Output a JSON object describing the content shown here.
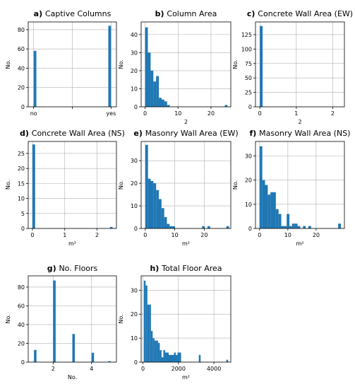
{
  "chart_data": [
    {
      "type": "bar",
      "letter": "a)",
      "title": "Captive Columns",
      "xlabel": "",
      "ylabel": "No.",
      "grid": true,
      "xlim": [
        -0.07,
        1.07
      ],
      "ylim": [
        0,
        88
      ],
      "xticks": [
        0,
        0.5,
        1
      ],
      "xticklabels": [
        "no",
        "",
        "yes"
      ],
      "yticks": [
        0,
        20,
        40,
        60,
        80
      ],
      "bins": [
        [
          0,
          0.035,
          58
        ],
        [
          0.965,
          1.0,
          84
        ]
      ]
    },
    {
      "type": "bar",
      "letter": "b)",
      "title": "Column Area",
      "xlabel": "2",
      "ylabel": "No.",
      "grid": true,
      "xlim": [
        -1.2,
        26
      ],
      "ylim": [
        0,
        47
      ],
      "xticks": [
        0,
        10,
        20
      ],
      "yticks": [
        0,
        10,
        20,
        30,
        40
      ],
      "bins": [
        [
          0,
          0.83,
          44
        ],
        [
          0.83,
          1.67,
          30
        ],
        [
          1.67,
          2.5,
          20
        ],
        [
          2.5,
          3.33,
          14
        ],
        [
          3.33,
          4.17,
          17
        ],
        [
          4.17,
          5.0,
          5
        ],
        [
          5.0,
          5.83,
          4
        ],
        [
          5.83,
          6.67,
          3
        ],
        [
          6.67,
          7.5,
          1
        ],
        [
          24.2,
          25.0,
          1
        ]
      ]
    },
    {
      "type": "bar",
      "letter": "c)",
      "title": "Concrete Wall Area (EW)",
      "xlabel": "2",
      "ylabel": "No.",
      "grid": true,
      "xlim": [
        -0.12,
        2.32
      ],
      "ylim": [
        0,
        147
      ],
      "xticks": [
        0,
        1,
        2
      ],
      "yticks": [
        0,
        25,
        50,
        75,
        100,
        125
      ],
      "bins": [
        [
          0,
          0.075,
          140
        ]
      ]
    },
    {
      "type": "bar",
      "letter": "d)",
      "title": "Concrete Wall Area (NS)",
      "xlabel": "m²",
      "ylabel": "No.",
      "grid": true,
      "xlim": [
        -0.13,
        2.6
      ],
      "ylim": [
        0,
        29
      ],
      "xticks": [
        0,
        1,
        2
      ],
      "yticks": [
        0,
        5,
        10,
        15,
        20,
        25
      ],
      "bins": [
        [
          0,
          0.083,
          28
        ],
        [
          2.4,
          2.48,
          0.5
        ]
      ]
    },
    {
      "type": "bar",
      "letter": "e)",
      "title": "Masonry Wall Area (EW)",
      "xlabel": "m²",
      "ylabel": "No.",
      "grid": true,
      "xlim": [
        -1.4,
        29
      ],
      "ylim": [
        0,
        38.5
      ],
      "xticks": [
        0,
        10,
        20
      ],
      "yticks": [
        0,
        10,
        20,
        30
      ],
      "bins": [
        [
          0,
          0.92,
          37
        ],
        [
          0.92,
          1.83,
          22
        ],
        [
          1.83,
          2.75,
          21
        ],
        [
          2.75,
          3.67,
          20
        ],
        [
          3.67,
          4.58,
          17
        ],
        [
          4.58,
          5.5,
          13
        ],
        [
          5.5,
          6.42,
          9
        ],
        [
          6.42,
          7.33,
          5
        ],
        [
          7.33,
          8.25,
          2
        ],
        [
          8.25,
          9.17,
          1
        ],
        [
          9.17,
          10.08,
          1
        ],
        [
          19.25,
          20.17,
          1
        ],
        [
          21.08,
          22.0,
          1
        ],
        [
          27.5,
          28.42,
          1
        ]
      ]
    },
    {
      "type": "bar",
      "letter": "f)",
      "title": "Masonry Wall Area (NS)",
      "xlabel": "m²",
      "ylabel": "No.",
      "grid": true,
      "xlim": [
        -1.45,
        30
      ],
      "ylim": [
        0,
        36
      ],
      "xticks": [
        0,
        10,
        20
      ],
      "yticks": [
        0,
        10,
        20,
        30
      ],
      "bins": [
        [
          0,
          0.96,
          34
        ],
        [
          0.96,
          1.92,
          20
        ],
        [
          1.92,
          2.88,
          18
        ],
        [
          2.88,
          3.83,
          14
        ],
        [
          3.83,
          4.79,
          15
        ],
        [
          4.79,
          5.75,
          15
        ],
        [
          5.75,
          6.71,
          8
        ],
        [
          6.71,
          7.67,
          6
        ],
        [
          7.67,
          8.63,
          1
        ],
        [
          8.63,
          9.58,
          1
        ],
        [
          9.58,
          10.54,
          6
        ],
        [
          10.54,
          11.5,
          1
        ],
        [
          11.5,
          12.46,
          2
        ],
        [
          12.46,
          13.42,
          2
        ],
        [
          13.42,
          14.38,
          1
        ],
        [
          15.33,
          16.29,
          1
        ],
        [
          17.25,
          18.21,
          1
        ],
        [
          27.79,
          28.75,
          2
        ]
      ]
    },
    {
      "type": "bar",
      "letter": "g)",
      "title": "No. Floors",
      "xlabel": "No.",
      "ylabel": "No.",
      "grid": true,
      "xlim": [
        0.7,
        5.3
      ],
      "ylim": [
        0,
        92
      ],
      "xticks": [
        2,
        4
      ],
      "yticks": [
        0,
        20,
        40,
        60,
        80
      ],
      "bins": [
        [
          1.0,
          1.13,
          13
        ],
        [
          2.0,
          2.13,
          87
        ],
        [
          3.0,
          3.13,
          30
        ],
        [
          4.0,
          4.13,
          10
        ],
        [
          4.87,
          5.0,
          1
        ]
      ]
    },
    {
      "type": "bar",
      "letter": "h)",
      "title": "Total Floor Area",
      "xlabel": "m²",
      "ylabel": "No.",
      "grid": true,
      "xlim": [
        -100,
        4950
      ],
      "ylim": [
        0,
        36
      ],
      "xticks": [
        0,
        2000,
        4000
      ],
      "yticks": [
        0,
        10,
        20,
        30
      ],
      "bins": [
        [
          50,
          150,
          34
        ],
        [
          150,
          250,
          32
        ],
        [
          250,
          350,
          24
        ],
        [
          350,
          450,
          24
        ],
        [
          450,
          550,
          13
        ],
        [
          550,
          650,
          10
        ],
        [
          650,
          750,
          9
        ],
        [
          750,
          850,
          9
        ],
        [
          850,
          950,
          8
        ],
        [
          950,
          1050,
          5
        ],
        [
          1050,
          1150,
          2
        ],
        [
          1150,
          1250,
          5
        ],
        [
          1250,
          1350,
          4
        ],
        [
          1350,
          1450,
          4
        ],
        [
          1450,
          1550,
          3
        ],
        [
          1550,
          1650,
          3
        ],
        [
          1650,
          1750,
          3
        ],
        [
          1750,
          1850,
          4
        ],
        [
          1850,
          1950,
          3
        ],
        [
          1950,
          2050,
          4
        ],
        [
          2050,
          2150,
          4
        ],
        [
          3150,
          3250,
          3
        ],
        [
          4700,
          4800,
          1
        ]
      ]
    }
  ],
  "colors": {
    "bar": "#1f77b4",
    "grid": "#b0b0b0",
    "axis": "#000000"
  }
}
